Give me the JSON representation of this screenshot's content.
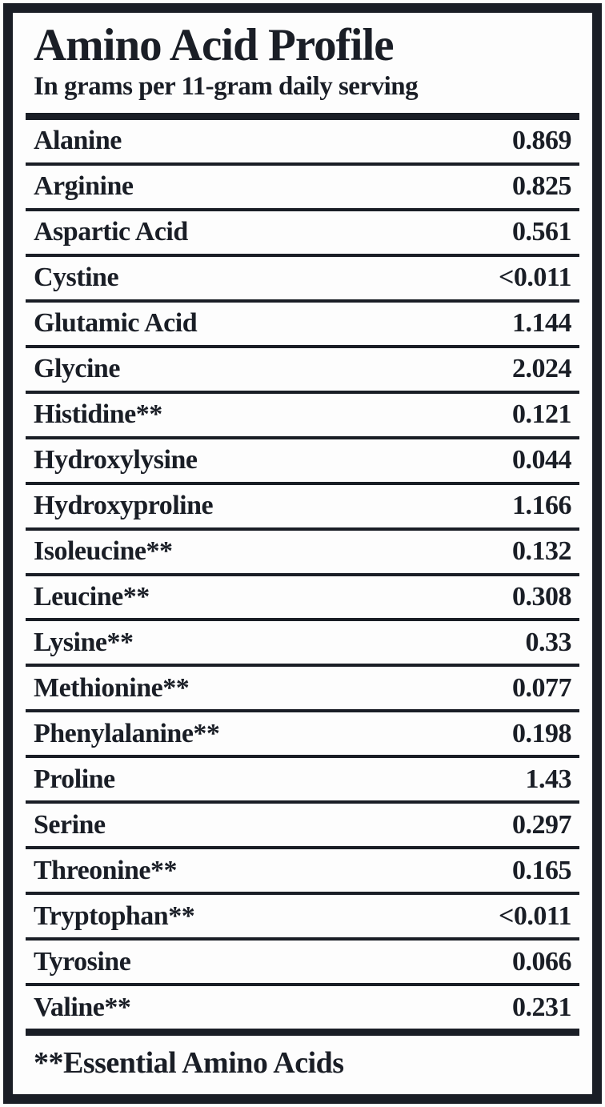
{
  "label": {
    "title": "Amino Acid Profile",
    "subtitle": "In grams per 11-gram daily serving",
    "footnote": "**Essential Amino Acids"
  },
  "colors": {
    "ink": "#1a1e26",
    "background": "#fdfdfd"
  },
  "table": {
    "unit": "grams",
    "rows": [
      {
        "name": "Alanine",
        "value": "0.869"
      },
      {
        "name": "Arginine",
        "value": "0.825"
      },
      {
        "name": "Aspartic Acid",
        "value": "0.561"
      },
      {
        "name": "Cystine",
        "value": "<0.011"
      },
      {
        "name": "Glutamic Acid",
        "value": "1.144"
      },
      {
        "name": "Glycine",
        "value": "2.024"
      },
      {
        "name": "Histidine**",
        "value": "0.121"
      },
      {
        "name": "Hydroxylysine",
        "value": "0.044"
      },
      {
        "name": "Hydroxyproline",
        "value": "1.166"
      },
      {
        "name": "Isoleucine**",
        "value": "0.132"
      },
      {
        "name": "Leucine**",
        "value": "0.308"
      },
      {
        "name": "Lysine**",
        "value": "0.33"
      },
      {
        "name": "Methionine**",
        "value": "0.077"
      },
      {
        "name": "Phenylalanine**",
        "value": "0.198"
      },
      {
        "name": "Proline",
        "value": "1.43"
      },
      {
        "name": "Serine",
        "value": "0.297"
      },
      {
        "name": "Threonine**",
        "value": "0.165"
      },
      {
        "name": "Tryptophan**",
        "value": "<0.011"
      },
      {
        "name": "Tyrosine",
        "value": "0.066"
      },
      {
        "name": "Valine**",
        "value": "0.231"
      }
    ]
  }
}
